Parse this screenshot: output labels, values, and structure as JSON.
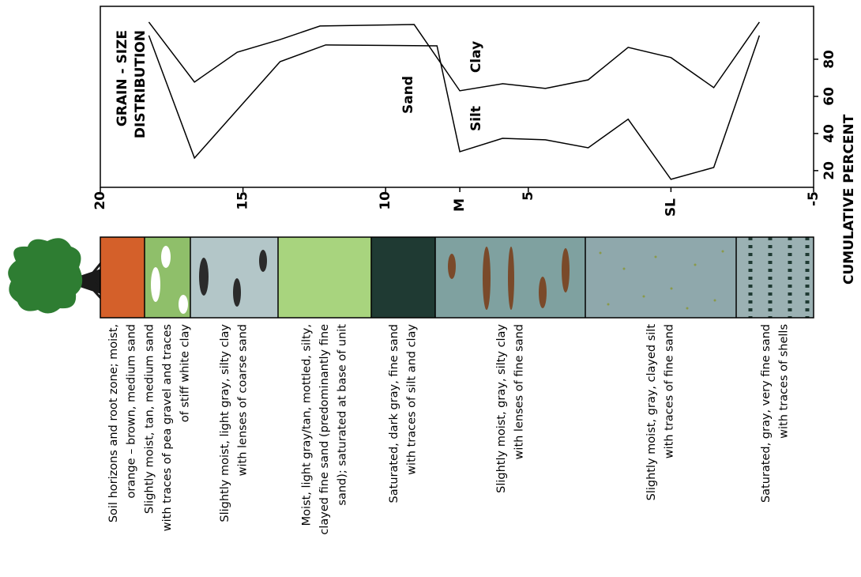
{
  "chart_data": {
    "type": "line",
    "title": [
      "GRAIN - SIZE",
      "DISTRIBUTION"
    ],
    "y_label": "CUMULATIVE PERCENT",
    "xlim": [
      20,
      -5
    ],
    "xticks": [
      20,
      15,
      10,
      5,
      -5
    ],
    "ylim": [
      11,
      108.5
    ],
    "yticks": [
      20,
      40,
      60,
      80
    ],
    "markers": [
      {
        "label": "M",
        "x": 7.4
      },
      {
        "label": "SL",
        "x": 0
      }
    ],
    "region_labels": [
      "Sand",
      "Silt",
      "Clay"
    ],
    "series": [
      {
        "color": "#000000",
        "x": [
          18.3,
          16.7,
          13.7,
          12.1,
          8.2,
          7.4,
          5.9,
          4.4,
          2.9,
          1.5,
          0.0,
          -1.5,
          -3.1
        ],
        "values": [
          92.8,
          26.8,
          78.7,
          87.7,
          87.2,
          30.2,
          37.4,
          36.6,
          32.3,
          47.7,
          15.3,
          21.7,
          92.8
        ]
      },
      {
        "color": "#000000",
        "x": [
          18.3,
          16.7,
          15.2,
          13.7,
          12.3,
          9.0,
          7.4,
          5.9,
          4.4,
          2.9,
          1.5,
          0.0,
          -1.5,
          -3.1
        ],
        "values": [
          100,
          67.7,
          83.8,
          90.6,
          97.9,
          98.7,
          63.0,
          66.8,
          64.3,
          68.9,
          86.4,
          80.9,
          64.7,
          100
        ]
      }
    ]
  },
  "soil_column": {
    "layers": [
      {
        "lines": [
          "Soil horizons and root zone; moist,",
          "orange – brown, medium sand"
        ]
      },
      {
        "lines": [
          "Slightly moist, tan, medium sand",
          "with traces of pea gravel and traces",
          "of stiff white clay"
        ]
      },
      {
        "lines": [
          "Slightly moist, light gray, silty clay",
          "with lenses of coarse sand"
        ]
      },
      {
        "lines": [
          "Moist, light gray/tan, mottled, silty,",
          "clayed fine sand (predominantly fine",
          "sand); saturated at base of unit"
        ]
      },
      {
        "lines": [
          "Saturated, dark gray, fine sand",
          "with traces of silt and clay"
        ]
      },
      {
        "lines": [
          "Slightly moist, gray, silty clay",
          "with lenses of fine sand"
        ]
      },
      {
        "lines": [
          "Slightly moist, gray, clayed silt",
          "with traces of fine sand"
        ]
      },
      {
        "lines": [
          "Saturated, gray, very fine sand",
          "with traces of shells"
        ]
      }
    ]
  }
}
